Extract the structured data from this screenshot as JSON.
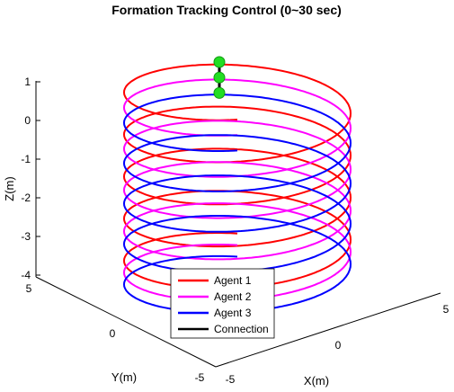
{
  "chart_data": {
    "type": "line",
    "title": "Formation Tracking Control (0~30 sec)",
    "xlabel": "X(m)",
    "ylabel": "Y(m)",
    "zlabel": "Z(m)",
    "x_ticks": [
      "-5",
      "0",
      "5"
    ],
    "y_ticks": [
      "5",
      "0",
      "-5"
    ],
    "z_ticks": [
      "1",
      "0",
      "-1",
      "-2",
      "-3",
      "-4"
    ],
    "xlim": [
      -5,
      5
    ],
    "ylim": [
      -5,
      5
    ],
    "zlim": [
      -4,
      1.2
    ],
    "legend_position": "bottom-center",
    "turns": 4.5,
    "radius": 4.2,
    "series": [
      {
        "name": "Agent 1",
        "color": "#ff0000",
        "z_start": -3.9,
        "z_end": 1.0
      },
      {
        "name": "Agent 2",
        "color": "#ff00ff",
        "z_start": -4.2,
        "z_end": 0.6
      },
      {
        "name": "Agent 3",
        "color": "#0000ff",
        "z_start": -4.5,
        "z_end": 0.2
      }
    ],
    "connection": {
      "name": "Connection",
      "color": "#000000"
    },
    "marker_color": "#22dd22"
  }
}
